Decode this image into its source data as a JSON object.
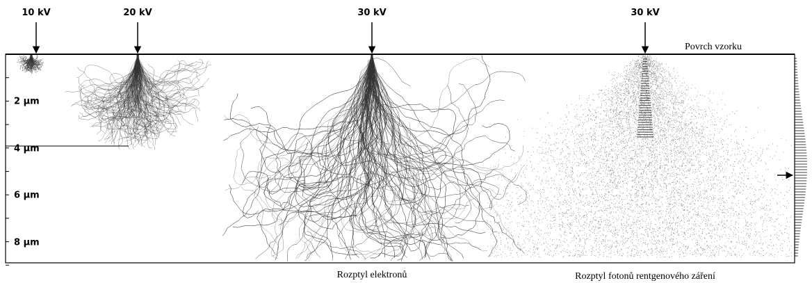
{
  "beams": [
    "10 kV",
    "20 kV",
    "30 kV",
    "30 kV"
  ],
  "surface_label": "Povrch vzorku",
  "depth_labels": [
    "2 μm",
    "4 μm",
    "6 μm",
    "8 μm"
  ],
  "captions": [
    "Rozptyl elektronů",
    "Rozptyl fotonů rentgenového záření"
  ]
}
